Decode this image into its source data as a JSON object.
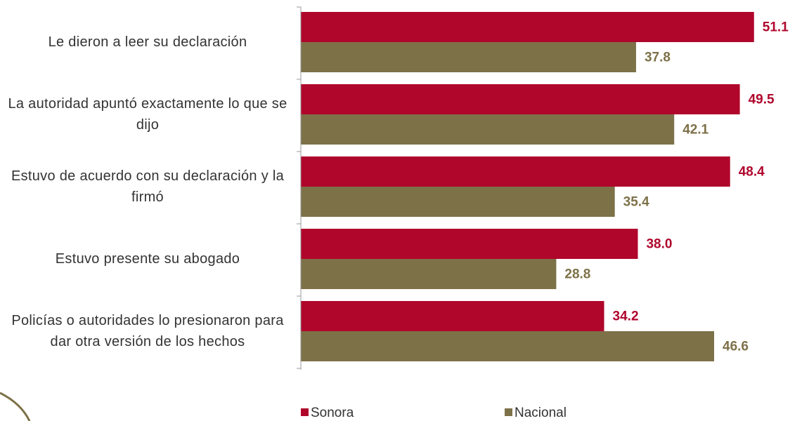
{
  "chart_data": {
    "type": "bar",
    "orientation": "horizontal",
    "categories": [
      "Le dieron a leer su declaración",
      "La autoridad apuntó exactamente lo que se dijo",
      "Estuvo de acuerdo con su declaración y la firmó",
      "Estuvo presente su abogado",
      "Policías o autoridades lo presionaron para dar otra versión de los hechos"
    ],
    "series": [
      {
        "name": "Sonora",
        "color": "#b0062c",
        "values": [
          51.1,
          49.5,
          48.4,
          38.0,
          34.2
        ],
        "value_labels": [
          "51.1",
          "49.5",
          "48.4",
          "38.0",
          "34.2"
        ]
      },
      {
        "name": "Nacional",
        "color": "#7d7148",
        "values": [
          37.8,
          42.1,
          35.4,
          28.8,
          46.6
        ],
        "value_labels": [
          "37.8",
          "42.1",
          "35.4",
          "28.8",
          "46.6"
        ]
      }
    ],
    "xlim": [
      0,
      55
    ],
    "legend": "bottom"
  }
}
